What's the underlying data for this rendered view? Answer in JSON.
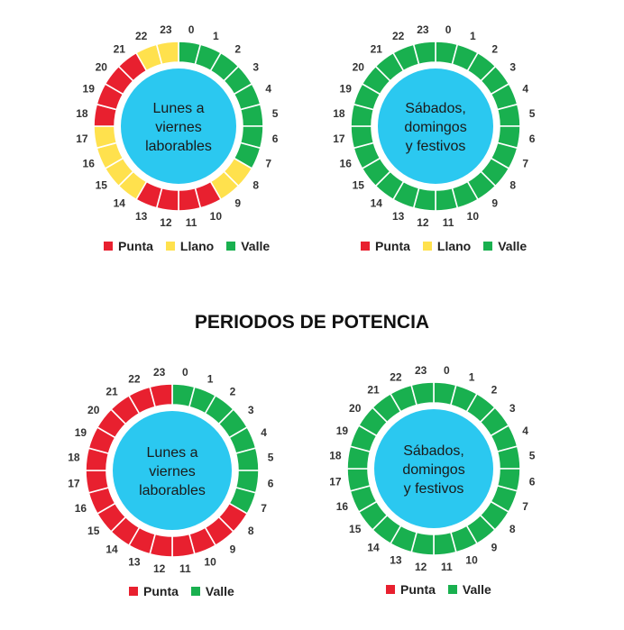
{
  "colors": {
    "punta": "#e8202f",
    "llano": "#ffe14d",
    "valle": "#19b04f",
    "center": "#2bc8f0",
    "ring_bg": "#ffffff",
    "separator": "#ffffff",
    "hour_label": "#333333"
  },
  "hours": [
    "0",
    "1",
    "2",
    "3",
    "4",
    "5",
    "6",
    "7",
    "8",
    "9",
    "10",
    "11",
    "12",
    "13",
    "14",
    "15",
    "16",
    "17",
    "18",
    "19",
    "20",
    "21",
    "22",
    "23"
  ],
  "section_title": "PERIODOS DE POTENCIA",
  "diagrams": [
    {
      "center_lines": [
        "Lunes a",
        "viernes",
        "laborables"
      ],
      "periods": [
        "valle",
        "valle",
        "valle",
        "valle",
        "valle",
        "valle",
        "valle",
        "valle",
        "llano",
        "llano",
        "punta",
        "punta",
        "punta",
        "punta",
        "llano",
        "llano",
        "llano",
        "llano",
        "punta",
        "punta",
        "punta",
        "punta",
        "llano",
        "llano"
      ],
      "legend": [
        {
          "label": "Punta",
          "color": "punta"
        },
        {
          "label": "Llano",
          "color": "llano"
        },
        {
          "label": "Valle",
          "color": "valle"
        }
      ]
    },
    {
      "center_lines": [
        "Sábados,",
        "domingos",
        "y festivos"
      ],
      "periods": [
        "valle",
        "valle",
        "valle",
        "valle",
        "valle",
        "valle",
        "valle",
        "valle",
        "valle",
        "valle",
        "valle",
        "valle",
        "valle",
        "valle",
        "valle",
        "valle",
        "valle",
        "valle",
        "valle",
        "valle",
        "valle",
        "valle",
        "valle",
        "valle"
      ],
      "legend": [
        {
          "label": "Punta",
          "color": "punta"
        },
        {
          "label": "Llano",
          "color": "llano"
        },
        {
          "label": "Valle",
          "color": "valle"
        }
      ]
    },
    {
      "center_lines": [
        "Lunes a",
        "viernes",
        "laborables"
      ],
      "periods": [
        "valle",
        "valle",
        "valle",
        "valle",
        "valle",
        "valle",
        "valle",
        "valle",
        "punta",
        "punta",
        "punta",
        "punta",
        "punta",
        "punta",
        "punta",
        "punta",
        "punta",
        "punta",
        "punta",
        "punta",
        "punta",
        "punta",
        "punta",
        "punta"
      ],
      "legend": [
        {
          "label": "Punta",
          "color": "punta"
        },
        {
          "label": "Valle",
          "color": "valle"
        }
      ]
    },
    {
      "center_lines": [
        "Sábados,",
        "domingos",
        "y festivos"
      ],
      "periods": [
        "valle",
        "valle",
        "valle",
        "valle",
        "valle",
        "valle",
        "valle",
        "valle",
        "valle",
        "valle",
        "valle",
        "valle",
        "valle",
        "valle",
        "valle",
        "valle",
        "valle",
        "valle",
        "valle",
        "valle",
        "valle",
        "valle",
        "valle",
        "valle"
      ],
      "legend": [
        {
          "label": "Punta",
          "color": "punta"
        },
        {
          "label": "Valle",
          "color": "valle"
        }
      ]
    }
  ]
}
